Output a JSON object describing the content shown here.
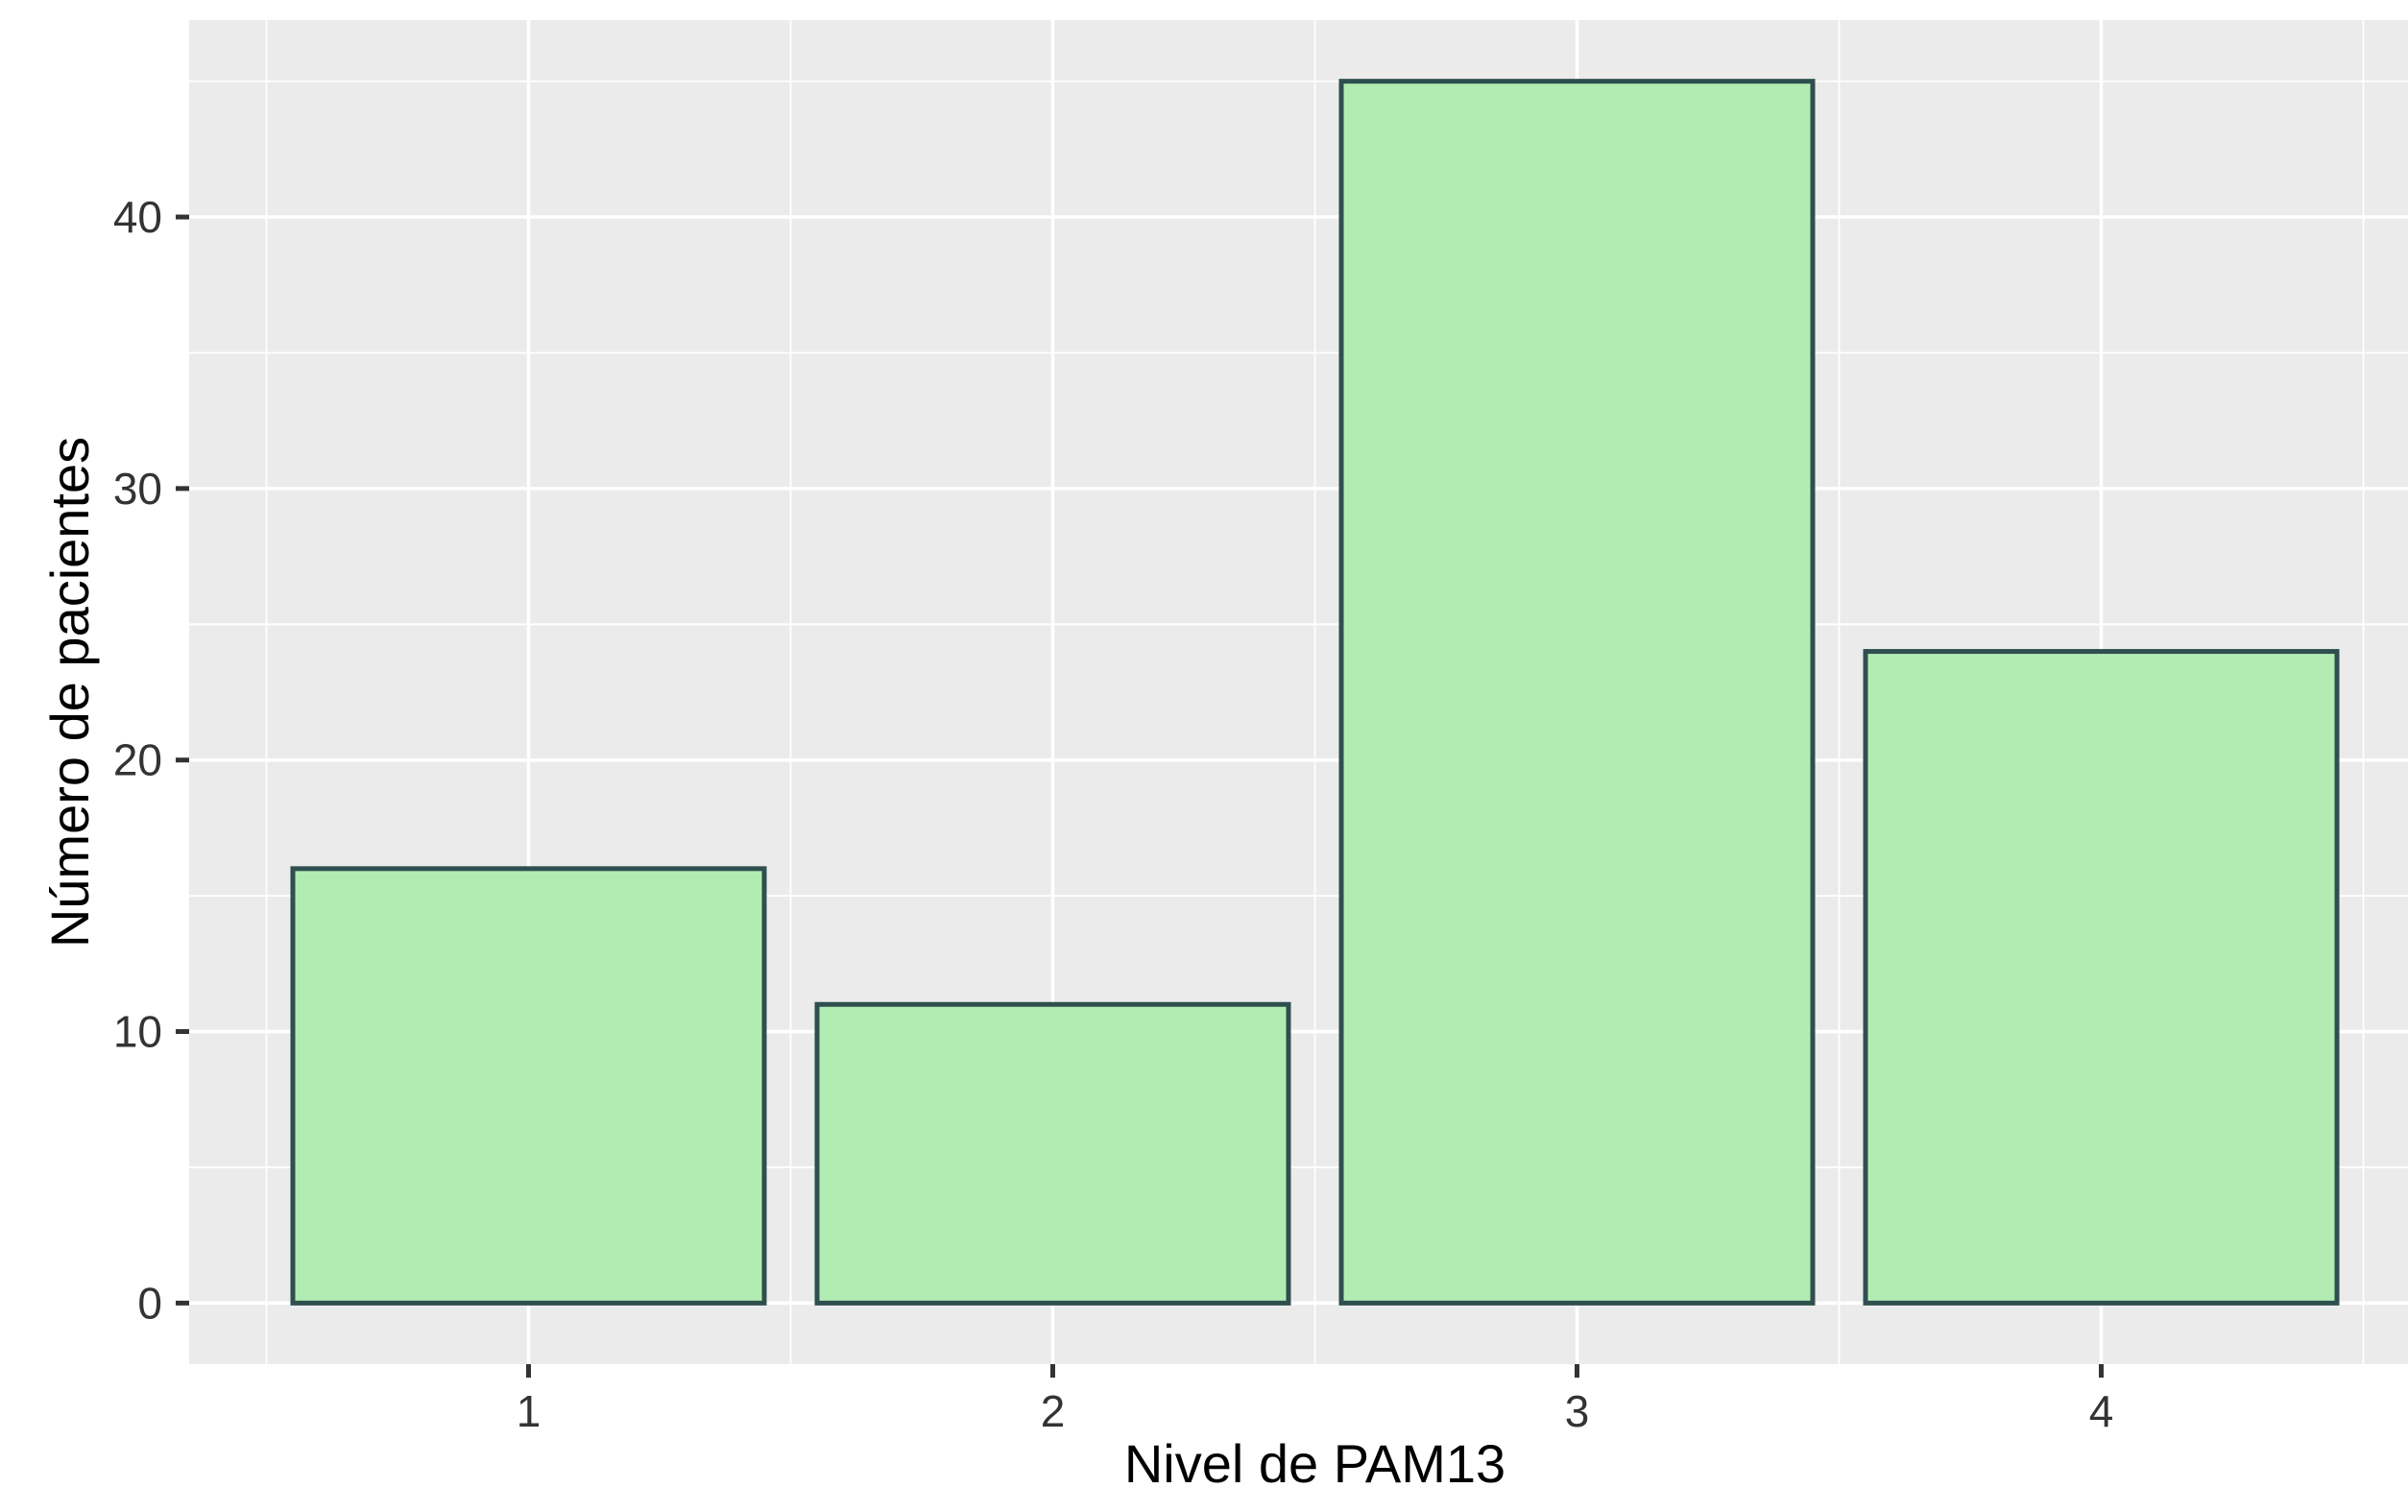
{
  "chart_data": {
    "type": "bar",
    "categories": [
      "1",
      "2",
      "3",
      "4"
    ],
    "values": [
      16,
      11,
      45,
      24
    ],
    "title": "",
    "xlabel": "Nivel de PAM13",
    "ylabel": "Número de pacientes",
    "yticks": [
      0,
      10,
      20,
      30,
      40
    ],
    "y_minor_gridlines": [
      5,
      15,
      25,
      35,
      45
    ],
    "ylim": [
      0,
      45
    ],
    "grid": "major and minor, white lines on gray panel",
    "legend_position": "none",
    "style": {
      "panel_bg": "#EBEBEB",
      "grid_color": "#FFFFFF",
      "bar_fill": "#B2ECB2",
      "bar_stroke": "#2F4F4F",
      "tick_mark_color": "#333333",
      "tick_label_color": "#333333",
      "axis_title_color": "#000000",
      "outer_bg": "#FFFFFF"
    }
  }
}
